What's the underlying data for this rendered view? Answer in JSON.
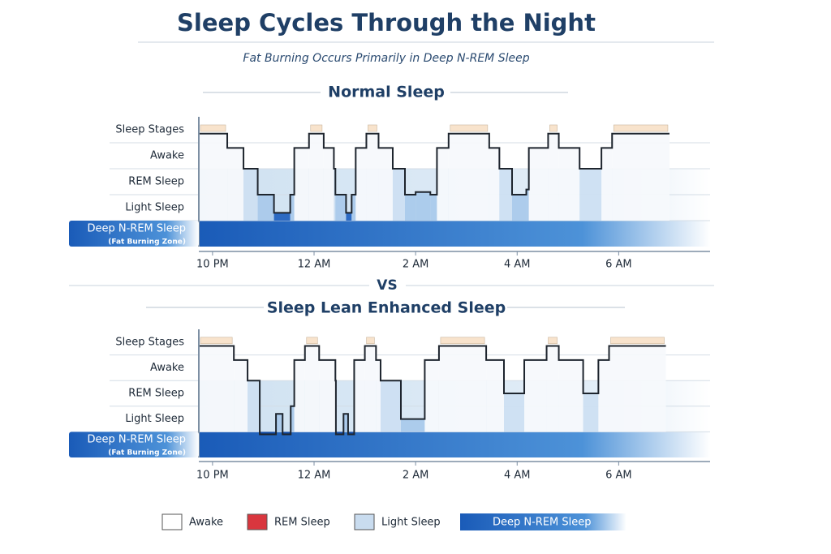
{
  "title": "Sleep Cycles Through the Night",
  "subtitle": "Fat Burning Occurs Primarily in Deep N-REM Sleep",
  "separator": "VS",
  "legend": [
    {
      "label": "Awake",
      "color": "#ffffff"
    },
    {
      "label": "REM Sleep",
      "color": "#d9363e"
    },
    {
      "label": "Light Sleep",
      "color": "#c9dcef"
    },
    {
      "label": "Deep N-REM Sleep",
      "color": "#1a5bb8"
    }
  ],
  "chart_data": [
    {
      "type": "line",
      "step": true,
      "title": "Normal Sleep",
      "note": "(Fat Burning Zone)",
      "color": "#1e252e",
      "x": [
        21.73,
        22.29,
        22.61,
        22.89,
        23.21,
        23.53,
        23.61,
        23.9,
        24.19,
        24.39,
        24.42,
        24.63,
        24.74,
        24.82,
        25.03,
        25.27,
        25.55,
        25.79,
        26.0,
        26.29,
        26.42,
        26.65,
        27.45,
        27.65,
        27.9,
        28.18,
        28.23,
        28.61,
        28.82,
        29.23,
        29.66,
        29.87,
        31.0
      ],
      "values": [
        3.85,
        3.3,
        2.5,
        1.5,
        0.8,
        1.5,
        3.3,
        3.85,
        3.3,
        2.5,
        1.5,
        0.8,
        1.5,
        3.3,
        3.85,
        3.3,
        2.5,
        1.5,
        1.6,
        1.5,
        3.3,
        3.85,
        3.3,
        2.5,
        1.5,
        1.7,
        3.3,
        3.85,
        3.3,
        2.5,
        3.3,
        3.85,
        3.85
      ],
      "xlim": [
        21.73,
        31.8
      ],
      "xticks": [
        {
          "value": 22,
          "label": "10 PM"
        },
        {
          "value": 24,
          "label": "12 AM"
        },
        {
          "value": 26,
          "label": "2 AM"
        },
        {
          "value": 28,
          "label": "4 AM"
        },
        {
          "value": 30,
          "label": "6 AM"
        }
      ],
      "ylim": [
        -0.5,
        4.5
      ],
      "yticks": [
        {
          "value": 4,
          "label": "Sleep Stages"
        },
        {
          "value": 3,
          "label": "Awake"
        },
        {
          "value": 2,
          "label": "REM Sleep"
        },
        {
          "value": 1,
          "label": "Light Sleep"
        },
        {
          "value": 0,
          "label": "Deep N-REM Sleep"
        }
      ]
    },
    {
      "type": "line",
      "step": true,
      "title": "Sleep Lean Enhanced Sleep",
      "note": "(Fat Burning Zone)",
      "color": "#1e252e",
      "x": [
        21.73,
        22.42,
        22.69,
        22.93,
        23.25,
        23.38,
        23.54,
        23.61,
        23.82,
        24.1,
        24.42,
        24.43,
        24.58,
        24.67,
        24.79,
        25.0,
        25.22,
        25.31,
        25.71,
        26.18,
        26.46,
        27.39,
        27.74,
        28.14,
        28.58,
        28.82,
        29.3,
        29.6,
        29.81,
        30.93
      ],
      "values": [
        3.85,
        3.3,
        2.5,
        0.4,
        1.2,
        0.4,
        1.5,
        3.3,
        3.85,
        3.3,
        2.5,
        0.4,
        1.2,
        0.4,
        3.3,
        3.85,
        3.3,
        2.5,
        1.0,
        3.3,
        3.85,
        3.3,
        2.0,
        3.3,
        3.85,
        3.3,
        2.0,
        3.3,
        3.85,
        3.85
      ],
      "xlim": [
        21.73,
        31.8
      ],
      "xticks": [
        {
          "value": 22,
          "label": "10 PM"
        },
        {
          "value": 24,
          "label": "12 AM"
        },
        {
          "value": 26,
          "label": "2 AM"
        },
        {
          "value": 28,
          "label": "4 AM"
        },
        {
          "value": 30,
          "label": "6 AM"
        }
      ],
      "ylim": [
        -0.5,
        4.5
      ],
      "yticks": [
        {
          "value": 4,
          "label": "Sleep Stages"
        },
        {
          "value": 3,
          "label": "Awake"
        },
        {
          "value": 2,
          "label": "REM Sleep"
        },
        {
          "value": 1,
          "label": "Light Sleep"
        },
        {
          "value": 0,
          "label": "Deep N-REM Sleep"
        }
      ]
    }
  ]
}
